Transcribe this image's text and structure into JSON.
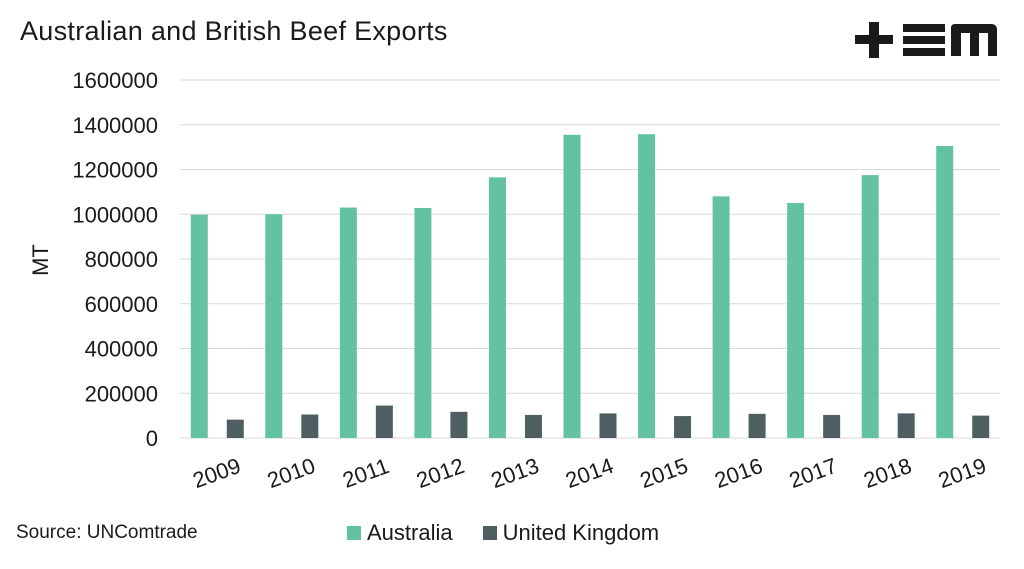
{
  "header": {
    "title": "Australian and British Beef Exports",
    "logo_text": "+EM"
  },
  "footer": {
    "source": "Source: UNComtrade"
  },
  "colors": {
    "australia": "#63c3a1",
    "united_kingdom": "#4f5f61",
    "grid": "#d9d9d9",
    "text": "#1a1a1a",
    "logo": "#1a1a1a"
  },
  "chart_data": {
    "type": "bar",
    "title": "Australian and British Beef Exports",
    "ylabel": "MT",
    "xlabel": "",
    "ylim": [
      0,
      1600000
    ],
    "yticks": [
      0,
      200000,
      400000,
      600000,
      800000,
      1000000,
      1200000,
      1400000,
      1600000
    ],
    "ytick_labels": [
      "0",
      "200000",
      "400000",
      "600000",
      "800000",
      "1000000",
      "1200000",
      "1400000",
      "1600000"
    ],
    "grid": true,
    "legend": "bottom",
    "categories": [
      "2009",
      "2010",
      "2011",
      "2012",
      "2013",
      "2014",
      "2015",
      "2016",
      "2017",
      "2018",
      "2019"
    ],
    "series": [
      {
        "name": "Australia",
        "color": "#63c3a1",
        "values": [
          998000,
          1000000,
          1030000,
          1028000,
          1165000,
          1355000,
          1358000,
          1080000,
          1050000,
          1175000,
          1305000
        ]
      },
      {
        "name": "United Kingdom",
        "color": "#4f5f61",
        "values": [
          82000,
          105000,
          145000,
          117000,
          103000,
          110000,
          98000,
          108000,
          103000,
          110000,
          100000
        ]
      }
    ]
  }
}
